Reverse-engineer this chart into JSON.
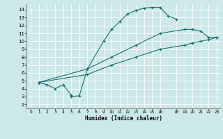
{
  "xlabel": "Humidex (Indice chaleur)",
  "bg_color": "#cce8e8",
  "grid_color": "#b8d8d8",
  "line_color": "#1a7070",
  "xlim": [
    -0.5,
    23.5
  ],
  "ylim": [
    1.5,
    14.7
  ],
  "xtick_vals": [
    0,
    1,
    2,
    3,
    4,
    5,
    6,
    7,
    8,
    9,
    10,
    11,
    12,
    13,
    14,
    15,
    16,
    18,
    19,
    20,
    21,
    22,
    23
  ],
  "ytick_vals": [
    2,
    3,
    4,
    5,
    6,
    7,
    8,
    9,
    10,
    11,
    12,
    13,
    14
  ],
  "line1_x": [
    1,
    2,
    3,
    4,
    5,
    5,
    6,
    7,
    9,
    10,
    11,
    12,
    13,
    14,
    15,
    16,
    17,
    18
  ],
  "line1_y": [
    4.8,
    4.5,
    4.0,
    4.5,
    3.2,
    3.0,
    3.1,
    6.5,
    10.0,
    11.5,
    12.5,
    13.5,
    13.9,
    14.2,
    14.3,
    14.3,
    13.2,
    12.8
  ],
  "line2_x": [
    1,
    7,
    10,
    13,
    16,
    19,
    20,
    21,
    22,
    23
  ],
  "line2_y": [
    4.8,
    6.5,
    8.0,
    9.5,
    11.0,
    11.5,
    11.5,
    11.3,
    10.5,
    10.5
  ],
  "line3_x": [
    1,
    7,
    10,
    13,
    16,
    19,
    20,
    21,
    22,
    23
  ],
  "line3_y": [
    4.8,
    5.8,
    7.0,
    8.0,
    9.0,
    9.5,
    9.8,
    10.0,
    10.2,
    10.5
  ]
}
